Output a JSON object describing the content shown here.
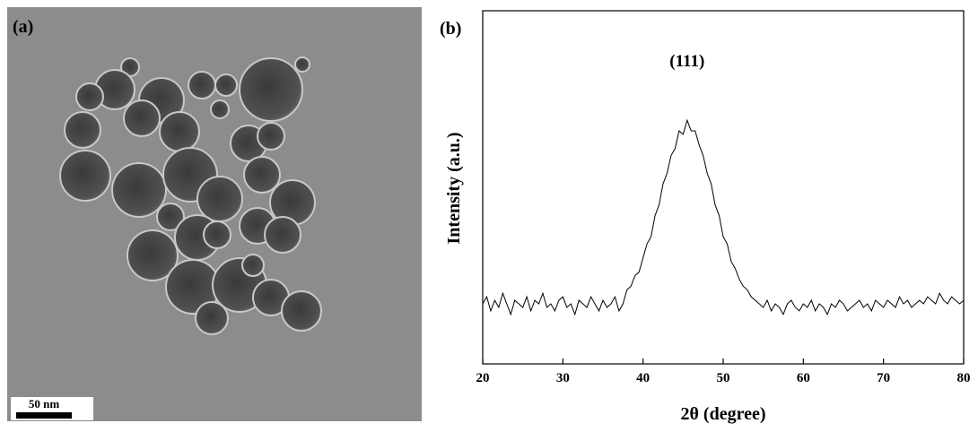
{
  "panel_a": {
    "label": "(a)",
    "scale_bar": "50 nm"
  },
  "chart_data": {
    "type": "line",
    "panel_label": "(b)",
    "annotation": "(111)",
    "x_label": "2θ (degree)",
    "y_label": "Intensity (a.u.)",
    "xlim": [
      20,
      80
    ],
    "xticks": [
      20,
      30,
      40,
      50,
      60,
      70,
      80
    ],
    "ylim": [
      0,
      100
    ],
    "color": "#000000",
    "x": [
      20,
      20.5,
      21,
      21.5,
      22,
      22.5,
      23,
      23.5,
      24,
      24.5,
      25,
      25.5,
      26,
      26.5,
      27,
      27.5,
      28,
      28.5,
      29,
      29.5,
      30,
      30.5,
      31,
      31.5,
      32,
      32.5,
      33,
      33.5,
      34,
      34.5,
      35,
      35.5,
      36,
      36.5,
      37,
      37.5,
      38,
      38.5,
      39,
      39.5,
      40,
      40.5,
      41,
      41.5,
      42,
      42.5,
      43,
      43.5,
      44,
      44.5,
      45,
      45.5,
      46,
      46.5,
      47,
      47.5,
      48,
      48.5,
      49,
      49.5,
      50,
      50.5,
      51,
      51.5,
      52,
      52.5,
      53,
      53.5,
      54,
      54.5,
      55,
      55.5,
      56,
      56.5,
      57,
      57.5,
      58,
      58.5,
      59,
      59.5,
      60,
      60.5,
      61,
      61.5,
      62,
      62.5,
      63,
      63.5,
      64,
      64.5,
      65,
      65.5,
      66,
      66.5,
      67,
      67.5,
      68,
      68.5,
      69,
      69.5,
      70,
      70.5,
      71,
      71.5,
      72,
      72.5,
      73,
      73.5,
      74,
      74.5,
      75,
      75.5,
      76,
      76.5,
      77,
      77.5,
      78,
      78.5,
      79,
      79.5,
      80
    ],
    "values": [
      17,
      19,
      15,
      18,
      16,
      20,
      17,
      14,
      18,
      17,
      16,
      19,
      15,
      18,
      17,
      20,
      16,
      17,
      15,
      18,
      19,
      16,
      17,
      14,
      18,
      17,
      16,
      19,
      17,
      15,
      18,
      16,
      17,
      19,
      15,
      17,
      21,
      22,
      25,
      26,
      30,
      34,
      36,
      42,
      45,
      51,
      54,
      59,
      61,
      66,
      65,
      69,
      66,
      66,
      62,
      59,
      54,
      51,
      45,
      42,
      36,
      34,
      29,
      27,
      24,
      22,
      21,
      19,
      18,
      17,
      16,
      18,
      15,
      17,
      16,
      14,
      17,
      18,
      16,
      15,
      17,
      16,
      18,
      15,
      17,
      16,
      14,
      17,
      16,
      18,
      17,
      15,
      16,
      17,
      18,
      16,
      17,
      15,
      18,
      17,
      16,
      18,
      17,
      16,
      19,
      17,
      18,
      16,
      17,
      18,
      17,
      19,
      18,
      17,
      20,
      18,
      17,
      19,
      18,
      17,
      18
    ]
  }
}
